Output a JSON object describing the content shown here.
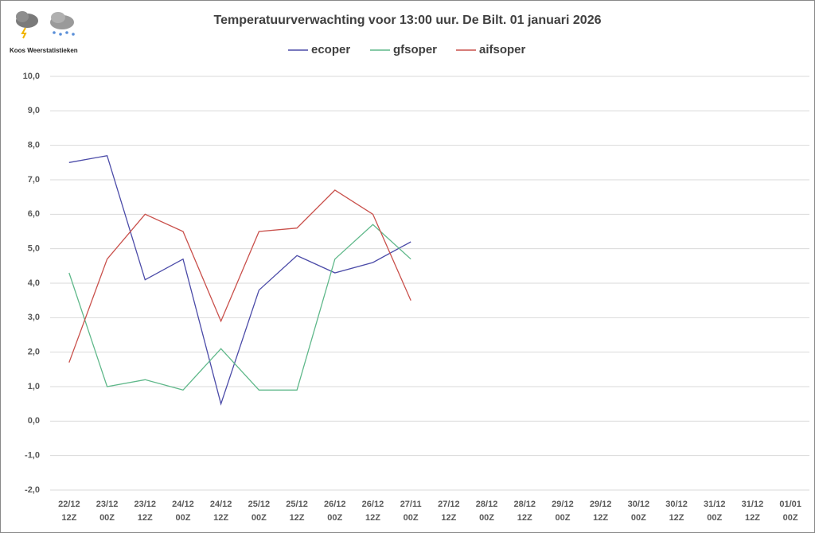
{
  "logo_text": "Koos Weerstatistieken",
  "chart_data": {
    "type": "line",
    "title": "Temperatuurverwachting voor 13:00 uur. De Bilt. 01 januari 2026",
    "categories": [
      "22/12\n12Z",
      "23/12\n00Z",
      "23/12\n12Z",
      "24/12\n00Z",
      "24/12\n12Z",
      "25/12\n00Z",
      "25/12\n12Z",
      "26/12\n00Z",
      "26/12\n12Z",
      "27/11\n00Z",
      "27/12\n12Z",
      "28/12\n00Z",
      "28/12\n12Z",
      "29/12\n00Z",
      "29/12\n12Z",
      "30/12\n00Z",
      "30/12\n12Z",
      "31/12\n00Z",
      "31/12\n12Z",
      "01/01\n00Z"
    ],
    "series": [
      {
        "name": "ecoper",
        "color": "#4b4ba8",
        "values": [
          7.5,
          7.7,
          4.1,
          4.7,
          0.5,
          3.8,
          4.8,
          4.3,
          4.6,
          5.2,
          null,
          null,
          null,
          null,
          null,
          null,
          null,
          null,
          null,
          null
        ]
      },
      {
        "name": "gfsoper",
        "color": "#5fb88a",
        "values": [
          4.3,
          1.0,
          1.2,
          0.9,
          2.1,
          0.9,
          0.9,
          4.7,
          5.7,
          4.7,
          null,
          null,
          null,
          null,
          null,
          null,
          null,
          null,
          null,
          null
        ]
      },
      {
        "name": "aifsoper",
        "color": "#c9504b",
        "values": [
          1.7,
          4.7,
          6.0,
          5.5,
          2.9,
          5.5,
          5.6,
          6.7,
          6.0,
          3.5,
          null,
          null,
          null,
          null,
          null,
          null,
          null,
          null,
          null,
          null
        ]
      }
    ],
    "ylim": [
      -2,
      10
    ],
    "yticks": [
      {
        "value": -2,
        "label": "-2,0"
      },
      {
        "value": -1,
        "label": "-1,0"
      },
      {
        "value": 0,
        "label": "0,0"
      },
      {
        "value": 1,
        "label": "1,0"
      },
      {
        "value": 2,
        "label": "2,0"
      },
      {
        "value": 3,
        "label": "3,0"
      },
      {
        "value": 4,
        "label": "4,0"
      },
      {
        "value": 5,
        "label": "5,0"
      },
      {
        "value": 6,
        "label": "6,0"
      },
      {
        "value": 7,
        "label": "7,0"
      },
      {
        "value": 8,
        "label": "8,0"
      },
      {
        "value": 9,
        "label": "9,0"
      },
      {
        "value": 10,
        "label": "10,0"
      }
    ],
    "grid": true,
    "legend": "top"
  }
}
